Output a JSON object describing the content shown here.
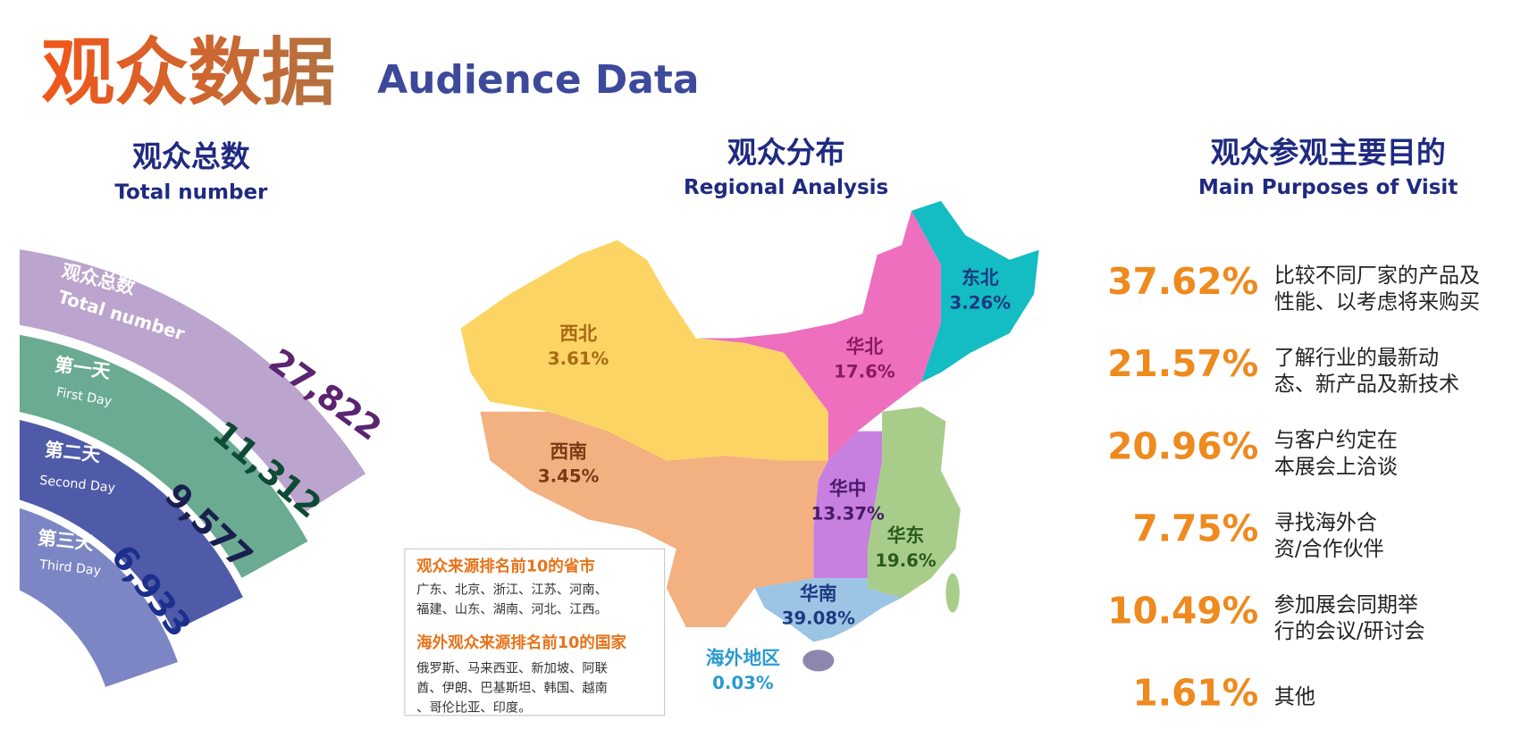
{
  "header": {
    "title_cn": "观众数据",
    "title_en": "Audience Data"
  },
  "total": {
    "heading_cn": "观众总数",
    "heading_en": "Total number",
    "bands": [
      {
        "label_cn": "观众总数",
        "label_en": "Total number",
        "value": "27,822"
      },
      {
        "label_cn": "第一天",
        "label_en": "First Day",
        "value": "11,312"
      },
      {
        "label_cn": "第二天",
        "label_en": "Second Day",
        "value": "9,577"
      },
      {
        "label_cn": "第三天",
        "label_en": "Third Day",
        "value": "6,933"
      }
    ]
  },
  "regions": {
    "heading_cn": "观众分布",
    "heading_en": "Regional Analysis",
    "items": [
      {
        "name": "西北",
        "share": "3.61%"
      },
      {
        "name": "华北",
        "share": "17.6%"
      },
      {
        "name": "东北",
        "share": "3.26%"
      },
      {
        "name": "西南",
        "share": "3.45%"
      },
      {
        "name": "华中",
        "share": "13.37%"
      },
      {
        "name": "华东",
        "share": "19.6%"
      },
      {
        "name": "华南",
        "share": "39.08%"
      },
      {
        "name": "海外地区",
        "share": "0.03%"
      }
    ],
    "legend": {
      "provinces_title": "观众来源排名前10的省市",
      "provinces_lines": [
        "广东、北京、浙江、江苏、河南、",
        "福建、山东、湖南、河北、江西。"
      ],
      "countries_title": "海外观众来源排名前10的国家",
      "countries_lines": [
        "俄罗斯、马来西亚、新加坡、阿联",
        "酋、伊朗、巴基斯坦、韩国、越南",
        "、哥伦比亚、印度。"
      ]
    }
  },
  "purposes": {
    "heading_cn": "观众参观主要目的",
    "heading_en": "Main Purposes of Visit",
    "items": [
      {
        "share": "37.62%",
        "lines": [
          "比较不同厂家的产品及",
          "性能、以考虑将来购买"
        ]
      },
      {
        "share": "21.57%",
        "lines": [
          "了解行业的最新动",
          "态、新产品及新技术"
        ]
      },
      {
        "share": "20.96%",
        "lines": [
          "与客户约定在",
          "本展会上洽谈"
        ]
      },
      {
        "share": "7.75%",
        "lines": [
          "寻找海外合",
          "资/合作伙伴"
        ]
      },
      {
        "share": "10.49%",
        "lines": [
          "参加展会同期举",
          "行的会议/研讨会"
        ]
      },
      {
        "share": "1.61%",
        "lines": [
          "其他"
        ]
      }
    ]
  }
}
